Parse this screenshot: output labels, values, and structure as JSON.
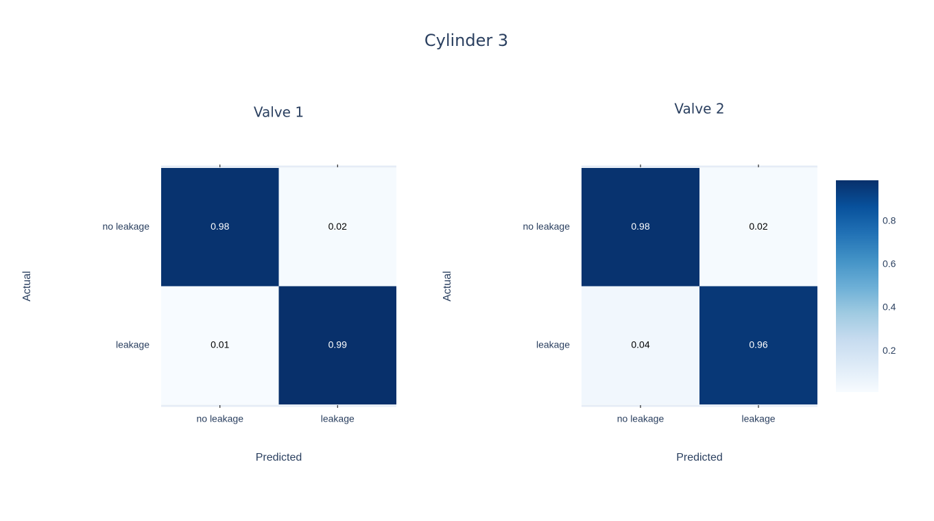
{
  "title": "Cylinder 3",
  "chart_data": [
    {
      "type": "heatmap",
      "title": "Valve 1",
      "x_label": "Predicted",
      "y_label": "Actual",
      "x_categories": [
        "no leakage",
        "leakage"
      ],
      "y_categories": [
        "no leakage",
        "leakage"
      ],
      "values": [
        [
          0.98,
          0.02
        ],
        [
          0.01,
          0.99
        ]
      ]
    },
    {
      "type": "heatmap",
      "title": "Valve 2",
      "x_label": "Predicted",
      "y_label": "Actual",
      "x_categories": [
        "no leakage",
        "leakage"
      ],
      "y_categories": [
        "no leakage",
        "leakage"
      ],
      "values": [
        [
          0.98,
          0.02
        ],
        [
          0.04,
          0.96
        ]
      ],
      "colorbar": {
        "lim": [
          0.01,
          0.99
        ],
        "ticks": [
          0.2,
          0.4,
          0.6,
          0.8
        ],
        "colorscale": [
          "#f7fbff",
          "#deebf7",
          "#c6dbef",
          "#9ecae1",
          "#6baed6",
          "#4292c6",
          "#2171b5",
          "#08519c",
          "#08306b"
        ]
      }
    }
  ]
}
